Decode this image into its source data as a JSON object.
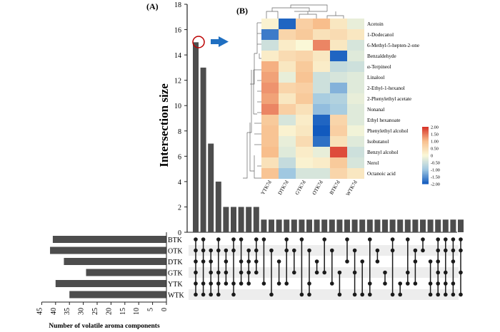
{
  "panel_a": {
    "label": "(A)",
    "ylabel": "Intersection size",
    "set_xlabel": "Number of volatile aroma components",
    "zoom_arrow": "right-arrow-icon"
  },
  "panel_b": {
    "label": "(B)"
  },
  "chart_data": [
    {
      "type": "bar",
      "title": "Intersection size",
      "ylabel": "Intersection size",
      "ylim": [
        0,
        18
      ],
      "yticks": [
        0,
        2,
        4,
        6,
        8,
        10,
        12,
        14,
        16,
        18
      ],
      "values": [
        15,
        13,
        7,
        4,
        2,
        2,
        2,
        2,
        2,
        1,
        1,
        1,
        1,
        1,
        1,
        1,
        1,
        1,
        1,
        1,
        1,
        1,
        1,
        1,
        1,
        1,
        1,
        1,
        1,
        1,
        1,
        1,
        1,
        1,
        1,
        1
      ],
      "highlight_index": 0
    },
    {
      "type": "bar",
      "orientation": "horizontal",
      "xlabel": "Number of volatile aroma components",
      "categories": [
        "BTK",
        "OTK",
        "DTK",
        "GTK",
        "YTK",
        "WTK"
      ],
      "values": [
        41,
        42,
        37,
        29,
        40,
        35
      ],
      "xlim": [
        0,
        45
      ],
      "xticks": [
        45,
        40,
        35,
        30,
        25,
        20,
        15,
        10,
        5,
        0
      ]
    },
    {
      "type": "matrix",
      "rows": [
        "BTK",
        "OTK",
        "DTK",
        "GTK",
        "YTK",
        "WTK"
      ],
      "columns": [
        [
          0,
          1,
          2,
          3,
          4,
          5
        ],
        [
          0,
          1,
          2,
          4,
          5
        ],
        [
          1,
          2,
          3,
          4,
          5
        ],
        [
          0,
          1,
          3,
          4,
          5
        ],
        [
          1,
          2,
          3,
          4
        ],
        [
          0,
          1,
          4,
          5
        ],
        [
          0,
          2,
          3,
          4
        ],
        [
          1,
          2,
          3,
          4
        ],
        [
          0,
          1,
          2,
          3
        ],
        [
          0,
          4
        ],
        [
          1,
          5
        ],
        [
          2,
          4
        ],
        [
          0,
          1,
          4
        ],
        [
          1,
          3
        ],
        [
          0,
          5
        ],
        [
          1,
          4,
          5
        ],
        [
          2,
          3
        ],
        [
          0,
          3
        ],
        [
          1,
          4
        ],
        [
          3,
          5
        ],
        [
          0,
          2
        ],
        [
          1,
          3,
          5
        ],
        [
          2,
          5
        ],
        [
          0,
          4,
          5
        ],
        [
          1,
          2
        ],
        [
          3,
          4
        ],
        [
          0,
          1,
          5
        ],
        [
          4,
          5
        ],
        [
          0,
          3,
          4
        ],
        [
          1,
          2,
          4
        ],
        [
          0,
          1
        ],
        [
          2,
          4,
          5
        ],
        [
          0,
          1,
          2,
          3,
          4,
          5
        ],
        [
          0,
          1,
          3,
          4,
          5
        ],
        [
          0,
          1,
          2,
          4,
          5
        ],
        [
          0,
          1,
          3,
          5
        ]
      ]
    },
    {
      "type": "heatmap",
      "rows": [
        "Acetoin",
        "1-Dodecanol",
        "6-Methyl-5-hepten-2-one",
        "Benzaldehyde",
        "α-Terpineol",
        "Linalool",
        "2-Ethyl-1-hexanol",
        "2-Phenylethyl acetate",
        "Nonanal",
        "Ethyl hexanoate",
        "Phenylethyl alcohol",
        "Isobutanol",
        "Benzyl alcohol",
        "Nerol",
        "Octanoic acid"
      ],
      "columns": [
        "YTK7d",
        "DTK7d",
        "GTK7d",
        "OTK7d",
        "BTK7d",
        "WTK7d"
      ],
      "values": [
        [
          0.1,
          -1.9,
          0.7,
          1.0,
          0.3,
          -0.2
        ],
        [
          -1.7,
          0.6,
          0.8,
          0.4,
          0.5,
          0.3
        ],
        [
          -0.5,
          0.2,
          0.0,
          1.4,
          0.3,
          -0.4
        ],
        [
          0.2,
          0.5,
          0.6,
          0.3,
          -1.9,
          -0.3
        ],
        [
          1.1,
          0.3,
          0.8,
          0.2,
          -0.6,
          -0.5
        ],
        [
          1.2,
          -0.2,
          0.9,
          -0.5,
          -0.4,
          -0.3
        ],
        [
          1.3,
          0.6,
          0.7,
          -0.5,
          -1.2,
          -0.3
        ],
        [
          1.2,
          0.3,
          0.8,
          -0.9,
          -0.8,
          -0.2
        ],
        [
          1.4,
          0.7,
          0.4,
          -1.1,
          -0.9,
          -0.3
        ],
        [
          0.8,
          -0.4,
          0.2,
          -1.9,
          0.6,
          -0.3
        ],
        [
          0.9,
          0.1,
          0.3,
          -2.0,
          0.7,
          -0.1
        ],
        [
          0.9,
          -0.2,
          0.5,
          -1.8,
          0.4,
          -0.3
        ],
        [
          1.0,
          -0.3,
          0.2,
          -0.2,
          1.8,
          -0.5
        ],
        [
          0.4,
          -0.6,
          0.1,
          0.2,
          0.8,
          -0.4
        ],
        [
          0.9,
          -1.0,
          -0.4,
          -0.4,
          0.6,
          0.3
        ]
      ],
      "colorbar": {
        "min": -2.0,
        "max": 2.0,
        "ticks": [
          "2.00",
          "1.50",
          "1.00",
          "0.50",
          "0",
          "-0.50",
          "-1.00",
          "-1.50",
          "-2.00"
        ]
      }
    }
  ]
}
